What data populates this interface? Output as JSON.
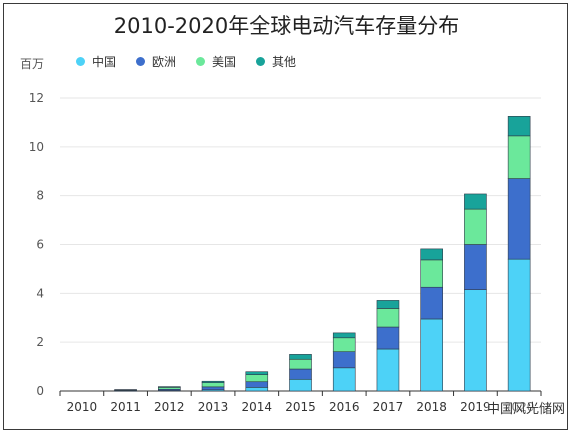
{
  "chart_data": {
    "type": "bar",
    "stacked": true,
    "title": "2010-2020年全球电动汽车存量分布",
    "unit_label": "百万",
    "categories": [
      "2010",
      "2011",
      "2012",
      "2013",
      "2014",
      "2015",
      "2016",
      "2017",
      "2018",
      "2019",
      "2020"
    ],
    "ylim": [
      0,
      12
    ],
    "yticks": [
      0,
      2,
      4,
      6,
      8,
      10,
      12
    ],
    "grid": true,
    "legend_position": "top-left",
    "series": [
      {
        "name": "中国",
        "color": "#4dd2f7",
        "values": [
          0.0,
          0.01,
          0.02,
          0.05,
          0.15,
          0.48,
          0.95,
          1.72,
          2.95,
          4.15,
          5.4
        ]
      },
      {
        "name": "欧洲",
        "color": "#3d6fcc",
        "values": [
          0.0,
          0.01,
          0.05,
          0.12,
          0.23,
          0.42,
          0.66,
          0.9,
          1.3,
          1.85,
          3.3
        ]
      },
      {
        "name": "美国",
        "color": "#6be89b",
        "values": [
          0.0,
          0.02,
          0.08,
          0.17,
          0.29,
          0.4,
          0.57,
          0.76,
          1.12,
          1.45,
          1.75
        ]
      },
      {
        "name": "其他",
        "color": "#18a39a",
        "values": [
          0.0,
          0.02,
          0.03,
          0.06,
          0.12,
          0.2,
          0.2,
          0.33,
          0.45,
          0.62,
          0.8
        ]
      }
    ]
  },
  "watermark": "中国风光储网"
}
